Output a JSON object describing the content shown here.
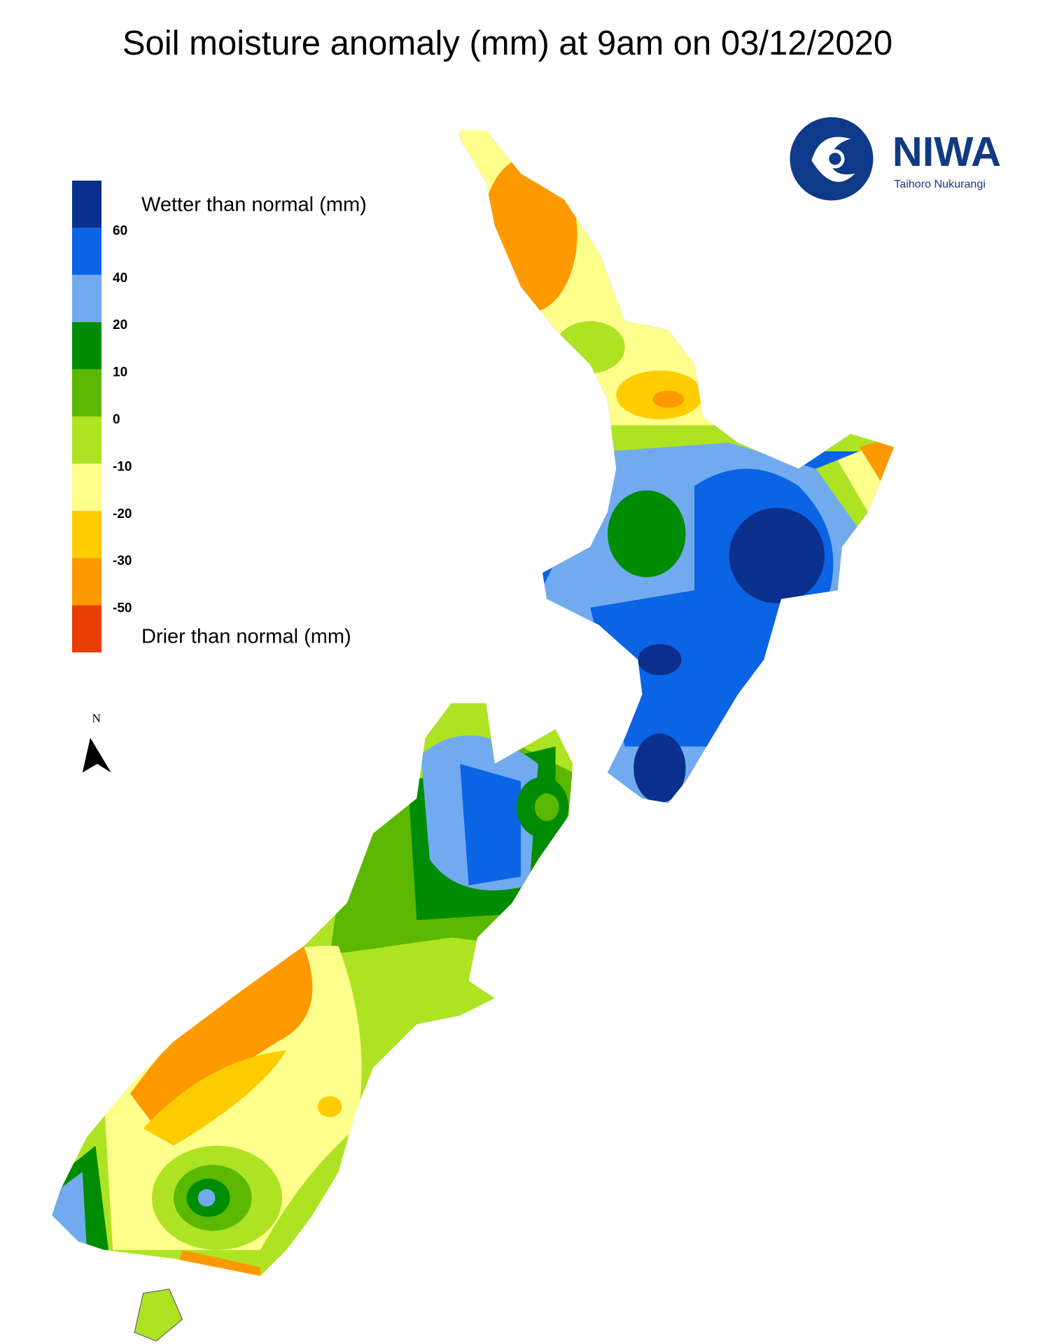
{
  "title": "Soil moisture anomaly (mm) at 9am on 03/12/2020",
  "legend": {
    "colors": [
      "#0b2f8c",
      "#0a64e4",
      "#72aaef",
      "#008c00",
      "#5cb700",
      "#aee324",
      "#ffff8c",
      "#ffcc00",
      "#ff9900",
      "#e63e00"
    ],
    "ticks": [
      60,
      40,
      20,
      10,
      0,
      -10,
      -20,
      -30,
      -50
    ],
    "wetter_label": "Wetter than normal (mm)",
    "drier_label": "Drier than normal (mm)"
  },
  "north_label": "N",
  "logo": {
    "name": "NIWA",
    "tagline": "Taihoro Nukurangi"
  }
}
